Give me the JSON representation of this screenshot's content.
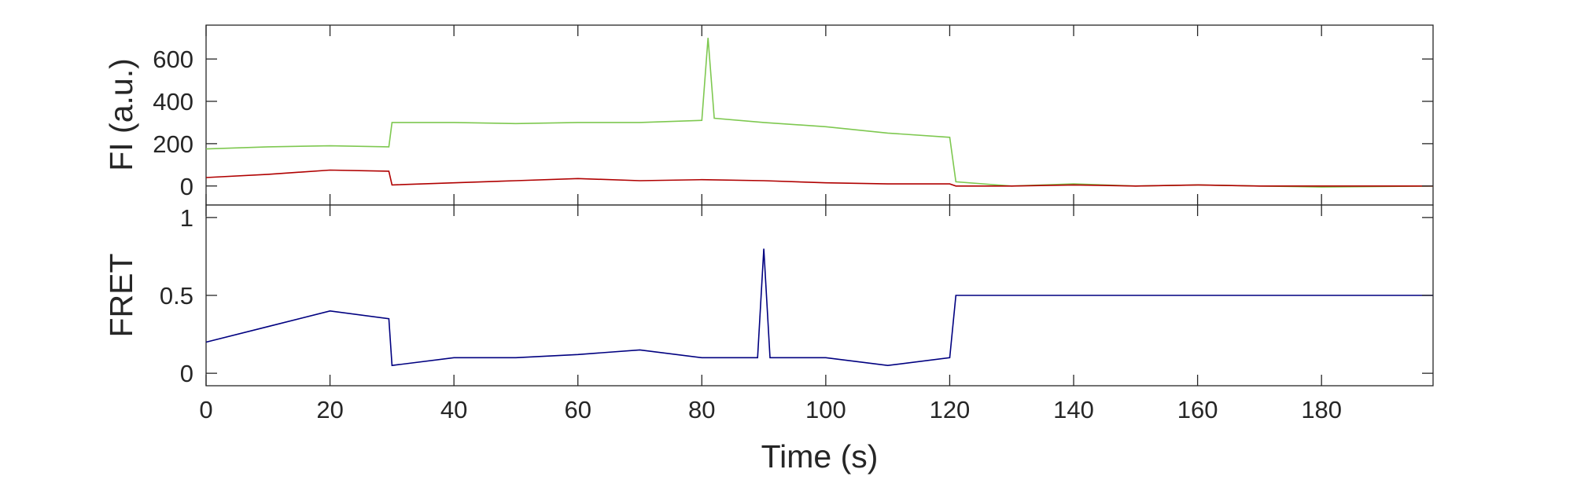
{
  "chart_data": [
    {
      "type": "line",
      "panel": "top",
      "ylabel": "FI (a.u.)",
      "xlabel": "",
      "xlim": [
        0,
        198
      ],
      "ylim": [
        -90,
        760
      ],
      "xticks": [
        0,
        20,
        40,
        60,
        80,
        100,
        120,
        140,
        160,
        180
      ],
      "yticks": [
        0,
        200,
        400,
        600
      ],
      "ytick_labels": [
        "0",
        "200",
        "400",
        "600"
      ],
      "grid": false,
      "series": [
        {
          "color": "#7ec850",
          "x": [
            0,
            10,
            20,
            29.5,
            30,
            40,
            50,
            60,
            70,
            80,
            81,
            82,
            90,
            100,
            110,
            120,
            121,
            130,
            140,
            150,
            160,
            170,
            180,
            198
          ],
          "values": [
            175,
            185,
            190,
            185,
            300,
            300,
            295,
            300,
            300,
            310,
            700,
            320,
            300,
            280,
            250,
            230,
            20,
            0,
            10,
            0,
            5,
            0,
            -5,
            0
          ]
        },
        {
          "color": "#b00000",
          "x": [
            0,
            10,
            20,
            29.5,
            30,
            40,
            50,
            60,
            70,
            80,
            90,
            100,
            110,
            120,
            121,
            130,
            140,
            150,
            160,
            170,
            180,
            198
          ],
          "values": [
            40,
            55,
            75,
            70,
            5,
            15,
            25,
            35,
            25,
            30,
            25,
            15,
            10,
            10,
            0,
            0,
            5,
            0,
            5,
            0,
            0,
            0
          ]
        }
      ]
    },
    {
      "type": "line",
      "panel": "bottom",
      "ylabel": "FRET",
      "xlabel": "Time (s)",
      "xlim": [
        0,
        198
      ],
      "ylim": [
        -0.08,
        1.08
      ],
      "xticks": [
        0,
        20,
        40,
        60,
        80,
        100,
        120,
        140,
        160,
        180
      ],
      "xtick_labels": [
        "0",
        "20",
        "40",
        "60",
        "80",
        "100",
        "120",
        "140",
        "160",
        "180"
      ],
      "yticks": [
        0,
        0.5,
        1
      ],
      "ytick_labels": [
        "0",
        "0.5",
        "1"
      ],
      "grid": false,
      "series": [
        {
          "color": "#000080",
          "x": [
            0,
            10,
            20,
            29.5,
            30,
            40,
            50,
            60,
            70,
            80,
            89,
            90,
            91,
            100,
            110,
            120,
            121,
            130,
            140,
            150,
            160,
            170,
            180,
            198
          ],
          "values": [
            0.2,
            0.3,
            0.4,
            0.35,
            0.05,
            0.1,
            0.1,
            0.12,
            0.15,
            0.1,
            0.1,
            0.8,
            0.1,
            0.1,
            0.05,
            0.1,
            0.5,
            0.5,
            0.5,
            0.5,
            0.5,
            0.5,
            0.5,
            0.5
          ]
        }
      ]
    }
  ]
}
